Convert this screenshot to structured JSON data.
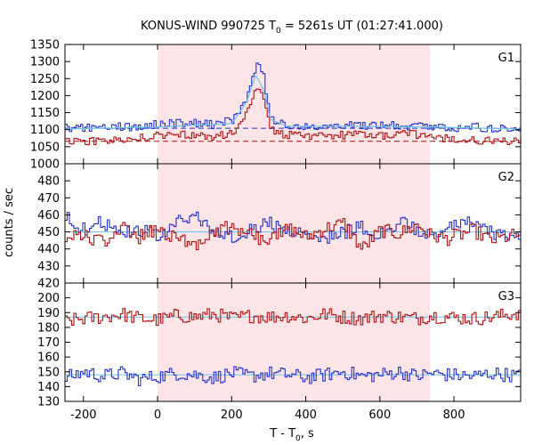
{
  "chart_data": {
    "type": "line",
    "title": {
      "main": "KONUS-WIND 990725 T",
      "sub": "0",
      "rest": " = 5261s UT (01:27:41.000)"
    },
    "xlabel": {
      "main": "T - T",
      "sub": "0",
      "rest": ", s"
    },
    "ylabel": "counts / sec",
    "xlim": [
      -250,
      980
    ],
    "x_ticks": [
      -200,
      0,
      200,
      400,
      600,
      800
    ],
    "shaded_interval": [
      0,
      735
    ],
    "colors": {
      "red": "#b01010",
      "blue": "#2233cc",
      "lightblue": "#6ec3e6",
      "shade": "#fde4e6"
    },
    "panels": [
      {
        "name": "G1",
        "ylim": [
          1000,
          1350
        ],
        "y_ticks": [
          1000,
          1050,
          1100,
          1150,
          1200,
          1250,
          1300,
          1350
        ],
        "baselines": [
          {
            "series": "G1 blue",
            "value": 1104,
            "color": "#2233cc",
            "style": "dashed"
          },
          {
            "series": "G1 red",
            "value": 1066,
            "color": "#b01010",
            "style": "dashed"
          }
        ],
        "series": [
          {
            "color": "#2233cc",
            "points": [
              [
                -250,
                1105
              ],
              [
                -200,
                1105
              ],
              [
                -150,
                1112
              ],
              [
                -100,
                1108
              ],
              [
                -50,
                1110
              ],
              [
                0,
                1118
              ],
              [
                50,
                1120
              ],
              [
                100,
                1120
              ],
              [
                150,
                1114
              ],
              [
                200,
                1130
              ],
              [
                220,
                1150
              ],
              [
                240,
                1200
              ],
              [
                255,
                1265
              ],
              [
                270,
                1295
              ],
              [
                285,
                1250
              ],
              [
                300,
                1150
              ],
              [
                320,
                1118
              ],
              [
                350,
                1112
              ],
              [
                400,
                1110
              ],
              [
                450,
                1108
              ],
              [
                500,
                1115
              ],
              [
                550,
                1110
              ],
              [
                600,
                1112
              ],
              [
                650,
                1112
              ],
              [
                700,
                1110
              ],
              [
                735,
                1112
              ],
              [
                780,
                1105
              ],
              [
                850,
                1108
              ],
              [
                900,
                1103
              ],
              [
                980,
                1100
              ]
            ]
          },
          {
            "color": "#b01010",
            "points": [
              [
                -250,
                1070
              ],
              [
                -200,
                1065
              ],
              [
                -150,
                1068
              ],
              [
                -100,
                1066
              ],
              [
                -50,
                1075
              ],
              [
                0,
                1082
              ],
              [
                50,
                1085
              ],
              [
                100,
                1082
              ],
              [
                150,
                1080
              ],
              [
                200,
                1090
              ],
              [
                220,
                1110
              ],
              [
                240,
                1150
              ],
              [
                255,
                1200
              ],
              [
                270,
                1230
              ],
              [
                285,
                1190
              ],
              [
                300,
                1110
              ],
              [
                320,
                1088
              ],
              [
                350,
                1085
              ],
              [
                400,
                1082
              ],
              [
                450,
                1086
              ],
              [
                500,
                1083
              ],
              [
                550,
                1085
              ],
              [
                600,
                1082
              ],
              [
                650,
                1085
              ],
              [
                700,
                1086
              ],
              [
                735,
                1080
              ],
              [
                780,
                1072
              ],
              [
                850,
                1068
              ],
              [
                900,
                1067
              ],
              [
                980,
                1068
              ]
            ]
          },
          {
            "color": "#6ec3e6",
            "points": [
              [
                -250,
                1102
              ],
              [
                0,
                1108
              ],
              [
                200,
                1118
              ],
              [
                240,
                1180
              ],
              [
                265,
                1260
              ],
              [
                285,
                1220
              ],
              [
                305,
                1130
              ],
              [
                350,
                1110
              ],
              [
                500,
                1110
              ],
              [
                735,
                1108
              ],
              [
                980,
                1102
              ]
            ]
          }
        ]
      },
      {
        "name": "G2",
        "ylim": [
          420,
          490
        ],
        "y_ticks": [
          420,
          430,
          440,
          450,
          460,
          470,
          480
        ],
        "baselines": [
          {
            "series": "G2 mean",
            "value": 450,
            "color": "#6ec3e6",
            "style": "solid"
          }
        ],
        "series": [
          {
            "color": "#2233cc",
            "points": [
              [
                -250,
                458
              ],
              [
                -200,
                452
              ],
              [
                -150,
                456
              ],
              [
                -100,
                449
              ],
              [
                -50,
                452
              ],
              [
                0,
                446
              ],
              [
                50,
                455
              ],
              [
                100,
                460
              ],
              [
                150,
                449
              ],
              [
                200,
                447
              ],
              [
                250,
                452
              ],
              [
                300,
                455
              ],
              [
                350,
                450
              ],
              [
                400,
                449
              ],
              [
                450,
                447
              ],
              [
                500,
                450
              ],
              [
                550,
                453
              ],
              [
                600,
                448
              ],
              [
                650,
                456
              ],
              [
                700,
                450
              ],
              [
                735,
                449
              ],
              [
                780,
                452
              ],
              [
                850,
                456
              ],
              [
                900,
                449
              ],
              [
                980,
                447
              ]
            ]
          },
          {
            "color": "#b01010",
            "points": [
              [
                -250,
                445
              ],
              [
                -200,
                449
              ],
              [
                -150,
                443
              ],
              [
                -100,
                452
              ],
              [
                -50,
                447
              ],
              [
                0,
                452
              ],
              [
                50,
                446
              ],
              [
                100,
                443
              ],
              [
                150,
                451
              ],
              [
                200,
                453
              ],
              [
                250,
                448
              ],
              [
                300,
                445
              ],
              [
                350,
                452
              ],
              [
                400,
                447
              ],
              [
                450,
                452
              ],
              [
                500,
                455
              ],
              [
                550,
                440
              ],
              [
                600,
                451
              ],
              [
                650,
                449
              ],
              [
                700,
                454
              ],
              [
                735,
                448
              ],
              [
                780,
                446
              ],
              [
                850,
                451
              ],
              [
                900,
                445
              ],
              [
                980,
                449
              ]
            ]
          }
        ]
      },
      {
        "name": "G3",
        "ylim": [
          130,
          210
        ],
        "y_ticks": [
          130,
          140,
          150,
          160,
          170,
          180,
          190,
          200
        ],
        "baselines": [
          {
            "series": "G3 red",
            "value": 187,
            "color": "#6ec3e6",
            "style": "solid"
          },
          {
            "series": "G3 blue",
            "value": 148,
            "color": "#6ec3e6",
            "style": "solid"
          }
        ],
        "series": [
          {
            "color": "#b01010",
            "points": [
              [
                -250,
                184
              ],
              [
                -200,
                186
              ],
              [
                -150,
                187
              ],
              [
                -100,
                189
              ],
              [
                -50,
                186
              ],
              [
                0,
                185
              ],
              [
                50,
                188
              ],
              [
                100,
                187
              ],
              [
                150,
                189
              ],
              [
                200,
                186
              ],
              [
                250,
                188
              ],
              [
                300,
                187
              ],
              [
                350,
                188
              ],
              [
                400,
                186
              ],
              [
                450,
                189
              ],
              [
                500,
                187
              ],
              [
                550,
                186
              ],
              [
                600,
                188
              ],
              [
                650,
                187
              ],
              [
                700,
                186
              ],
              [
                735,
                188
              ],
              [
                780,
                187
              ],
              [
                850,
                186
              ],
              [
                900,
                187
              ],
              [
                980,
                190
              ]
            ]
          },
          {
            "color": "#2233cc",
            "points": [
              [
                -250,
                146
              ],
              [
                -200,
                150
              ],
              [
                -150,
                147
              ],
              [
                -100,
                149
              ],
              [
                -50,
                145
              ],
              [
                0,
                147
              ],
              [
                50,
                149
              ],
              [
                100,
                148
              ],
              [
                150,
                146
              ],
              [
                200,
                149
              ],
              [
                250,
                147
              ],
              [
                300,
                149
              ],
              [
                350,
                148
              ],
              [
                400,
                146
              ],
              [
                450,
                148
              ],
              [
                500,
                150
              ],
              [
                550,
                147
              ],
              [
                600,
                148
              ],
              [
                650,
                150
              ],
              [
                700,
                147
              ],
              [
                735,
                149
              ],
              [
                780,
                148
              ],
              [
                850,
                147
              ],
              [
                900,
                149
              ],
              [
                980,
                147
              ]
            ]
          }
        ]
      }
    ]
  }
}
